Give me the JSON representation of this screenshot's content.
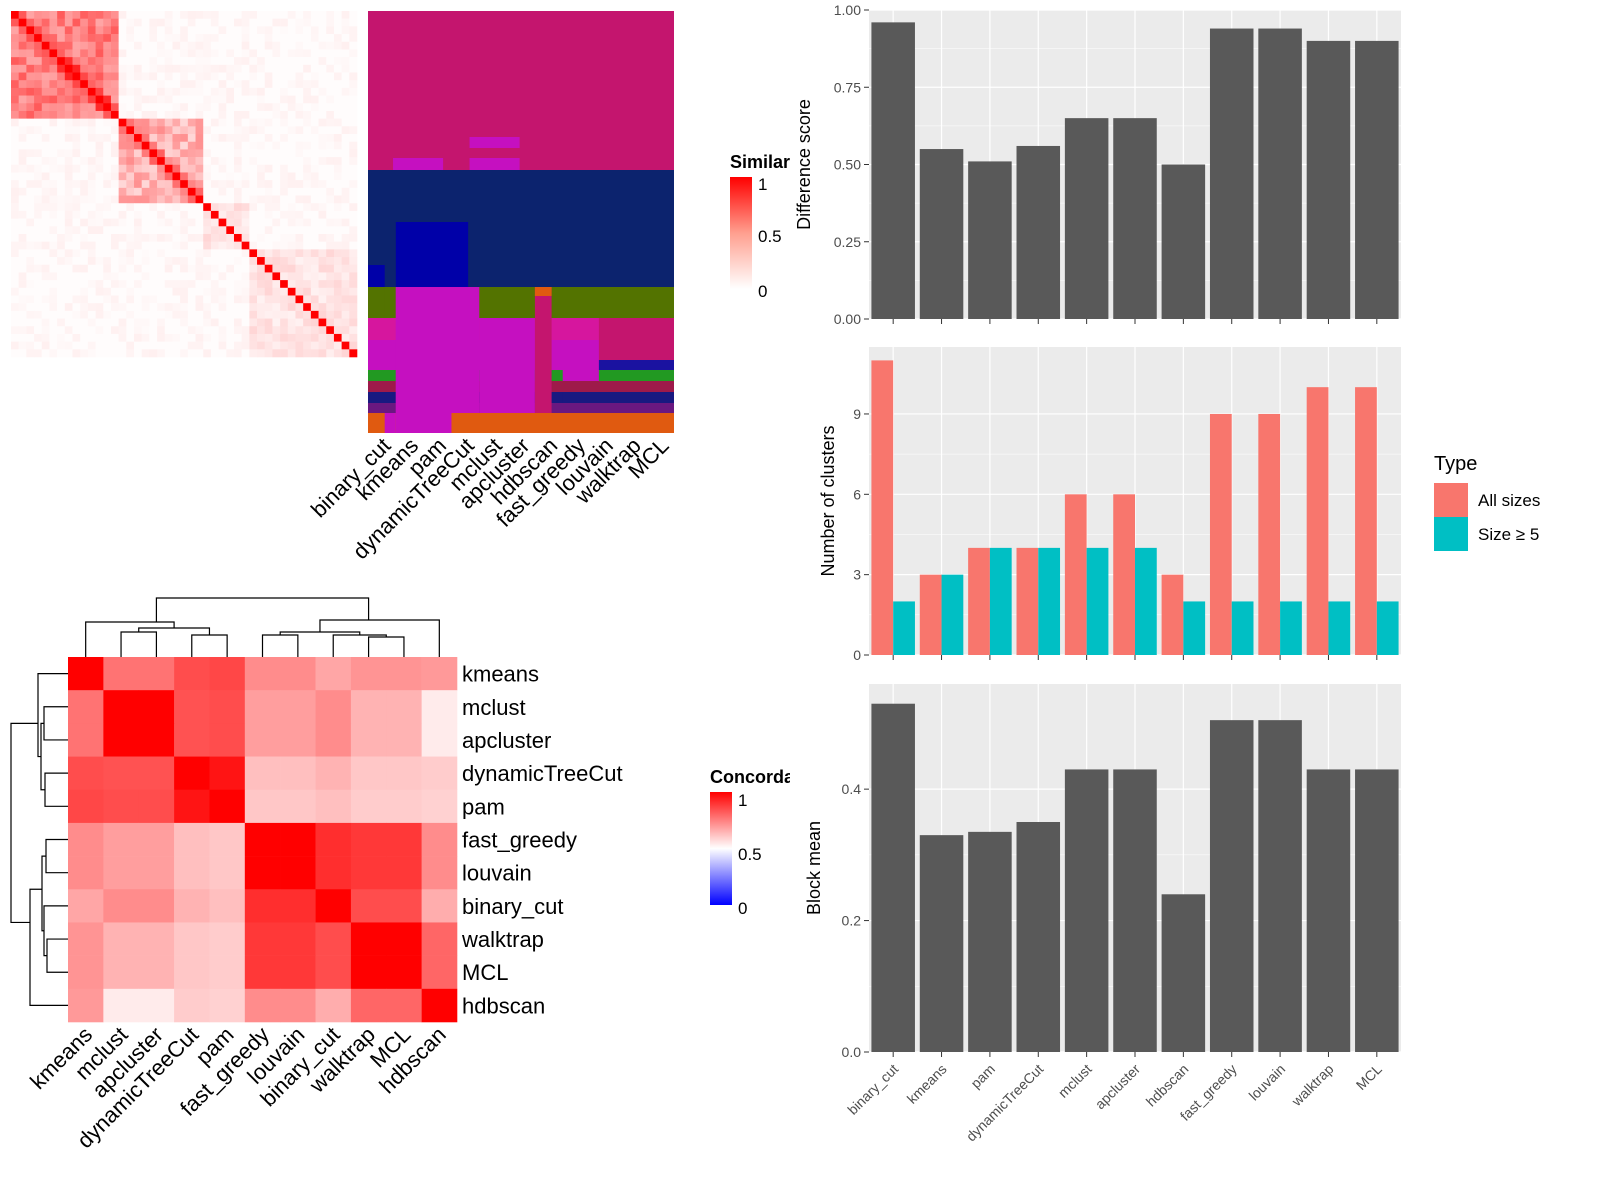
{
  "methods_order": [
    "binary_cut",
    "kmeans",
    "pam",
    "dynamicTreeCut",
    "mclust",
    "apcluster",
    "hdbscan",
    "fast_greedy",
    "louvain",
    "walktrap",
    "MCL"
  ],
  "colors": {
    "bar_dark": "#595959",
    "all_sizes": "#F8766D",
    "size_ge5": "#00BFC4",
    "panel_bg": "#EBEBEB",
    "heat_high": "#FF0000",
    "heat_low": "#FFFFFF",
    "concord_low": "#0000FF"
  },
  "similarity_heatmap": {
    "legend_title": "Similarity",
    "legend_labels": [
      "1",
      "0.5",
      "0"
    ],
    "column_labels": [
      "binary_cut",
      "kmeans",
      "pam",
      "dynamicTreeCut",
      "mclust",
      "apcluster",
      "hdbscan",
      "fast_greedy",
      "louvain",
      "walktrap",
      "MCL"
    ]
  },
  "concordance_heatmap": {
    "legend_title": "Concordance",
    "legend_labels": [
      "1",
      "0.5",
      "0"
    ],
    "order": [
      "kmeans",
      "mclust",
      "apcluster",
      "dynamicTreeCut",
      "pam",
      "fast_greedy",
      "louvain",
      "binary_cut",
      "walktrap",
      "MCL",
      "hdbscan"
    ],
    "values": [
      [
        1.0,
        0.55,
        0.55,
        0.7,
        0.72,
        0.45,
        0.45,
        0.35,
        0.42,
        0.42,
        0.4
      ],
      [
        0.55,
        1.0,
        1.0,
        0.68,
        0.7,
        0.38,
        0.38,
        0.45,
        0.3,
        0.3,
        0.08
      ],
      [
        0.55,
        1.0,
        1.0,
        0.68,
        0.7,
        0.38,
        0.38,
        0.45,
        0.3,
        0.3,
        0.08
      ],
      [
        0.7,
        0.68,
        0.68,
        1.0,
        0.92,
        0.25,
        0.25,
        0.3,
        0.22,
        0.22,
        0.2
      ],
      [
        0.72,
        0.7,
        0.7,
        0.92,
        1.0,
        0.22,
        0.22,
        0.25,
        0.2,
        0.2,
        0.18
      ],
      [
        0.45,
        0.38,
        0.38,
        0.25,
        0.22,
        1.0,
        1.0,
        0.82,
        0.78,
        0.78,
        0.45
      ],
      [
        0.45,
        0.38,
        0.38,
        0.25,
        0.22,
        1.0,
        1.0,
        0.82,
        0.78,
        0.78,
        0.45
      ],
      [
        0.35,
        0.45,
        0.45,
        0.3,
        0.25,
        0.82,
        0.82,
        1.0,
        0.7,
        0.7,
        0.32
      ],
      [
        0.42,
        0.3,
        0.3,
        0.22,
        0.2,
        0.78,
        0.78,
        0.7,
        1.0,
        1.0,
        0.6
      ],
      [
        0.42,
        0.3,
        0.3,
        0.22,
        0.2,
        0.78,
        0.78,
        0.7,
        1.0,
        1.0,
        0.6
      ],
      [
        0.4,
        0.08,
        0.08,
        0.2,
        0.18,
        0.45,
        0.45,
        0.32,
        0.6,
        0.6,
        1.0
      ]
    ]
  },
  "chart_data": [
    {
      "type": "bar",
      "categories": [
        "binary_cut",
        "kmeans",
        "pam",
        "dynamicTreeCut",
        "mclust",
        "apcluster",
        "hdbscan",
        "fast_greedy",
        "louvain",
        "walktrap",
        "MCL"
      ],
      "values": [
        0.96,
        0.55,
        0.51,
        0.56,
        0.65,
        0.65,
        0.5,
        0.94,
        0.94,
        0.9,
        0.9
      ],
      "title": "",
      "xlabel": "",
      "ylabel": "Difference score",
      "ylim": [
        0,
        1
      ],
      "yticks": [
        "0.00",
        "0.25",
        "0.50",
        "0.75",
        "1.00"
      ]
    },
    {
      "type": "bar",
      "categories": [
        "binary_cut",
        "kmeans",
        "pam",
        "dynamicTreeCut",
        "mclust",
        "apcluster",
        "hdbscan",
        "fast_greedy",
        "louvain",
        "walktrap",
        "MCL"
      ],
      "series": [
        {
          "name": "All sizes",
          "values": [
            11,
            3,
            4,
            4,
            6,
            6,
            3,
            9,
            9,
            10,
            10
          ]
        },
        {
          "name": "Size ≥ 5",
          "values": [
            2,
            3,
            4,
            4,
            4,
            4,
            2,
            2,
            2,
            2,
            2
          ]
        }
      ],
      "title": "",
      "xlabel": "",
      "ylabel": "Number of clusters",
      "ylim": [
        0,
        11.5
      ],
      "yticks": [
        "0",
        "3",
        "6",
        "9"
      ],
      "legend_title": "Type",
      "legend_position": "right"
    },
    {
      "type": "bar",
      "categories": [
        "binary_cut",
        "kmeans",
        "pam",
        "dynamicTreeCut",
        "mclust",
        "apcluster",
        "hdbscan",
        "fast_greedy",
        "louvain",
        "walktrap",
        "MCL"
      ],
      "values": [
        0.53,
        0.33,
        0.335,
        0.35,
        0.43,
        0.43,
        0.24,
        0.505,
        0.505,
        0.43,
        0.43
      ],
      "title": "",
      "xlabel": "",
      "ylabel": "Block mean",
      "ylim": [
        0,
        0.56
      ],
      "yticks": [
        "0.0",
        "0.2",
        "0.4"
      ]
    }
  ]
}
